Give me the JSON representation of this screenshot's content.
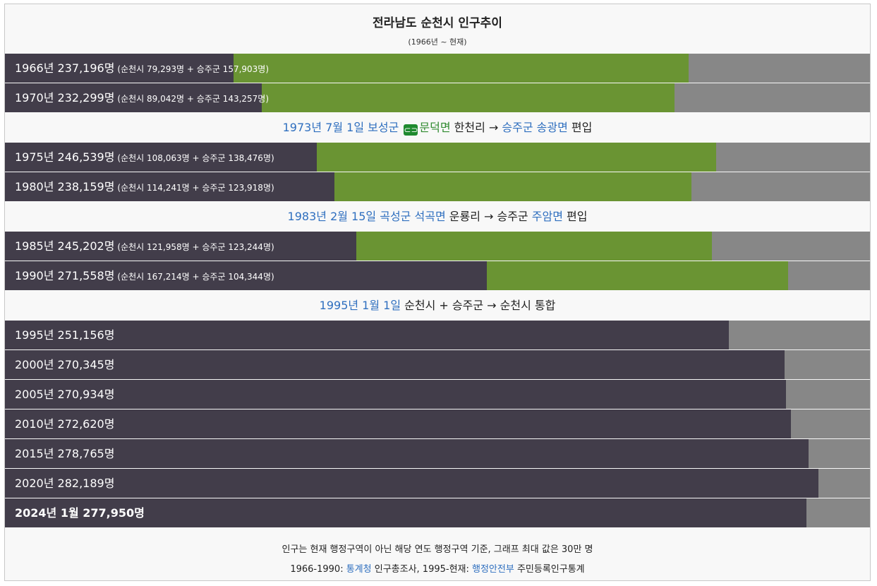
{
  "chart_data": {
    "type": "bar",
    "title": "전라남도 순천시 인구추이",
    "subtitle": "(1966년 ~ 현재)",
    "xlim": [
      0,
      300000
    ],
    "colors": {
      "suncheon": "#423d4a",
      "seungju": "#6a9433",
      "track": "#878787"
    },
    "rows": [
      {
        "kind": "bar",
        "label": "1966년 237,196명",
        "detail": "(순천시 79,293명 + 승주군 157,903명)",
        "total": 237196,
        "suncheon": 79293,
        "seungju": 157903
      },
      {
        "kind": "bar",
        "label": "1970년 232,299명",
        "detail": "(순천시 89,042명 + 승주군 143,257명)",
        "total": 232299,
        "suncheon": 89042,
        "seungju": 143257
      },
      {
        "kind": "event",
        "parts": [
          {
            "text": "1973년 7월 1일",
            "style": "link"
          },
          {
            "text": " "
          },
          {
            "text": "보성군",
            "style": "link"
          },
          {
            "text": " "
          },
          {
            "text": "⊂⊃",
            "style": "icon"
          },
          {
            "text": "문덕면",
            "style": "green"
          },
          {
            "text": " 한천리 → "
          },
          {
            "text": "승주군",
            "style": "link"
          },
          {
            "text": " "
          },
          {
            "text": "송광면",
            "style": "link"
          },
          {
            "text": " 편입"
          }
        ]
      },
      {
        "kind": "bar",
        "label": "1975년 246,539명",
        "detail": "(순천시 108,063명 + 승주군 138,476명)",
        "total": 246539,
        "suncheon": 108063,
        "seungju": 138476
      },
      {
        "kind": "bar",
        "label": "1980년 238,159명",
        "detail": "(순천시 114,241명 + 승주군 123,918명)",
        "total": 238159,
        "suncheon": 114241,
        "seungju": 123918
      },
      {
        "kind": "event",
        "parts": [
          {
            "text": "1983년 2월 15일",
            "style": "link"
          },
          {
            "text": " "
          },
          {
            "text": "곡성군",
            "style": "link"
          },
          {
            "text": " "
          },
          {
            "text": "석곡면",
            "style": "link"
          },
          {
            "text": " 운룡리 → 승주군 "
          },
          {
            "text": "주암면",
            "style": "link"
          },
          {
            "text": " 편입"
          }
        ]
      },
      {
        "kind": "bar",
        "label": "1985년 245,202명",
        "detail": "(순천시 121,958명 + 승주군 123,244명)",
        "total": 245202,
        "suncheon": 121958,
        "seungju": 123244
      },
      {
        "kind": "bar",
        "label": "1990년 271,558명",
        "detail": "(순천시 167,214명 + 승주군 104,344명)",
        "total": 271558,
        "suncheon": 167214,
        "seungju": 104344
      },
      {
        "kind": "event",
        "parts": [
          {
            "text": "1995년 1월 1일",
            "style": "link"
          },
          {
            "text": " 순천시 + 승주군 → 순천시 통합"
          }
        ]
      },
      {
        "kind": "bar",
        "label": "1995년 251,156명",
        "total": 251156,
        "suncheon": 251156
      },
      {
        "kind": "bar",
        "label": "2000년 270,345명",
        "total": 270345,
        "suncheon": 270345
      },
      {
        "kind": "bar",
        "label": "2005년 270,934명",
        "total": 270934,
        "suncheon": 270934
      },
      {
        "kind": "bar",
        "label": "2010년 272,620명",
        "total": 272620,
        "suncheon": 272620
      },
      {
        "kind": "bar",
        "label": "2015년 278,765명",
        "total": 278765,
        "suncheon": 278765
      },
      {
        "kind": "bar",
        "label": "2020년 282,189명",
        "total": 282189,
        "suncheon": 282189
      },
      {
        "kind": "bar",
        "label": "2024년 1월 277,950명",
        "total": 277950,
        "suncheon": 277950,
        "bold": true
      }
    ]
  },
  "footer": {
    "note": "인구는 현재 행정구역이 아닌 해당 연도 행정구역 기준, 그래프 최대 값은 30만 명",
    "source_prefix": "1966-1990: ",
    "source_link1": "통계청",
    "source_mid": " 인구총조사, 1995-현재: ",
    "source_link2": "행정안전부",
    "source_suffix": " 주민등록인구통계"
  }
}
